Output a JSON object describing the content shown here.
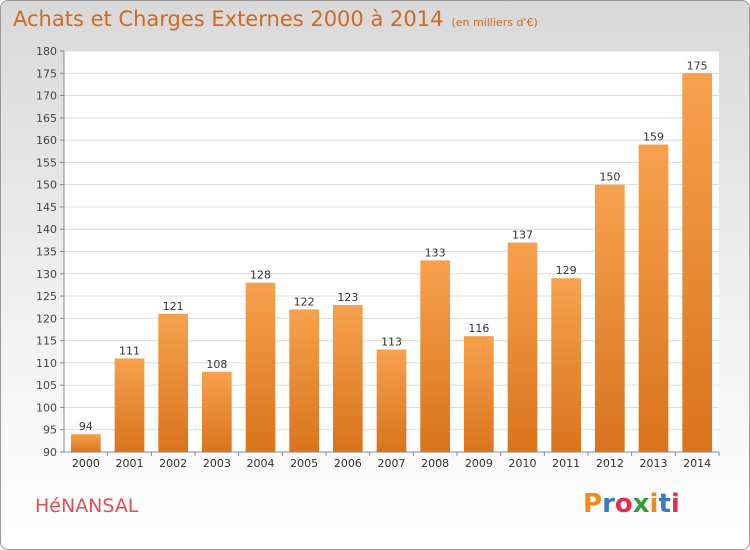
{
  "header": {
    "title": "Achats et Charges Externes 2000 à 2014",
    "subtitle": "(en milliers d'€)"
  },
  "footer": {
    "commune": "HéNANSAL",
    "logo_text": "Proxiti"
  },
  "colors": {
    "title": "#d2691e",
    "commune": "#e0505a",
    "bar_light": "#f7a14e",
    "bar_dark": "#d9741c",
    "logo_letters": [
      "#f08a1c",
      "#3a78c8",
      "#e03050",
      "#3a9a3a",
      "#f08a1c",
      "#3a78c8",
      "#e03050"
    ]
  },
  "chart_data": {
    "type": "bar",
    "categories": [
      "2000",
      "2001",
      "2002",
      "2003",
      "2004",
      "2005",
      "2006",
      "2007",
      "2008",
      "2009",
      "2010",
      "2011",
      "2012",
      "2013",
      "2014"
    ],
    "values": [
      94,
      111,
      121,
      108,
      128,
      122,
      123,
      113,
      133,
      116,
      137,
      129,
      150,
      159,
      175
    ],
    "ylim": [
      90,
      180
    ],
    "yticks": [
      90,
      95,
      100,
      105,
      110,
      115,
      120,
      125,
      130,
      135,
      140,
      145,
      150,
      155,
      160,
      165,
      170,
      175,
      180
    ],
    "grid": true,
    "data_labels": true
  }
}
